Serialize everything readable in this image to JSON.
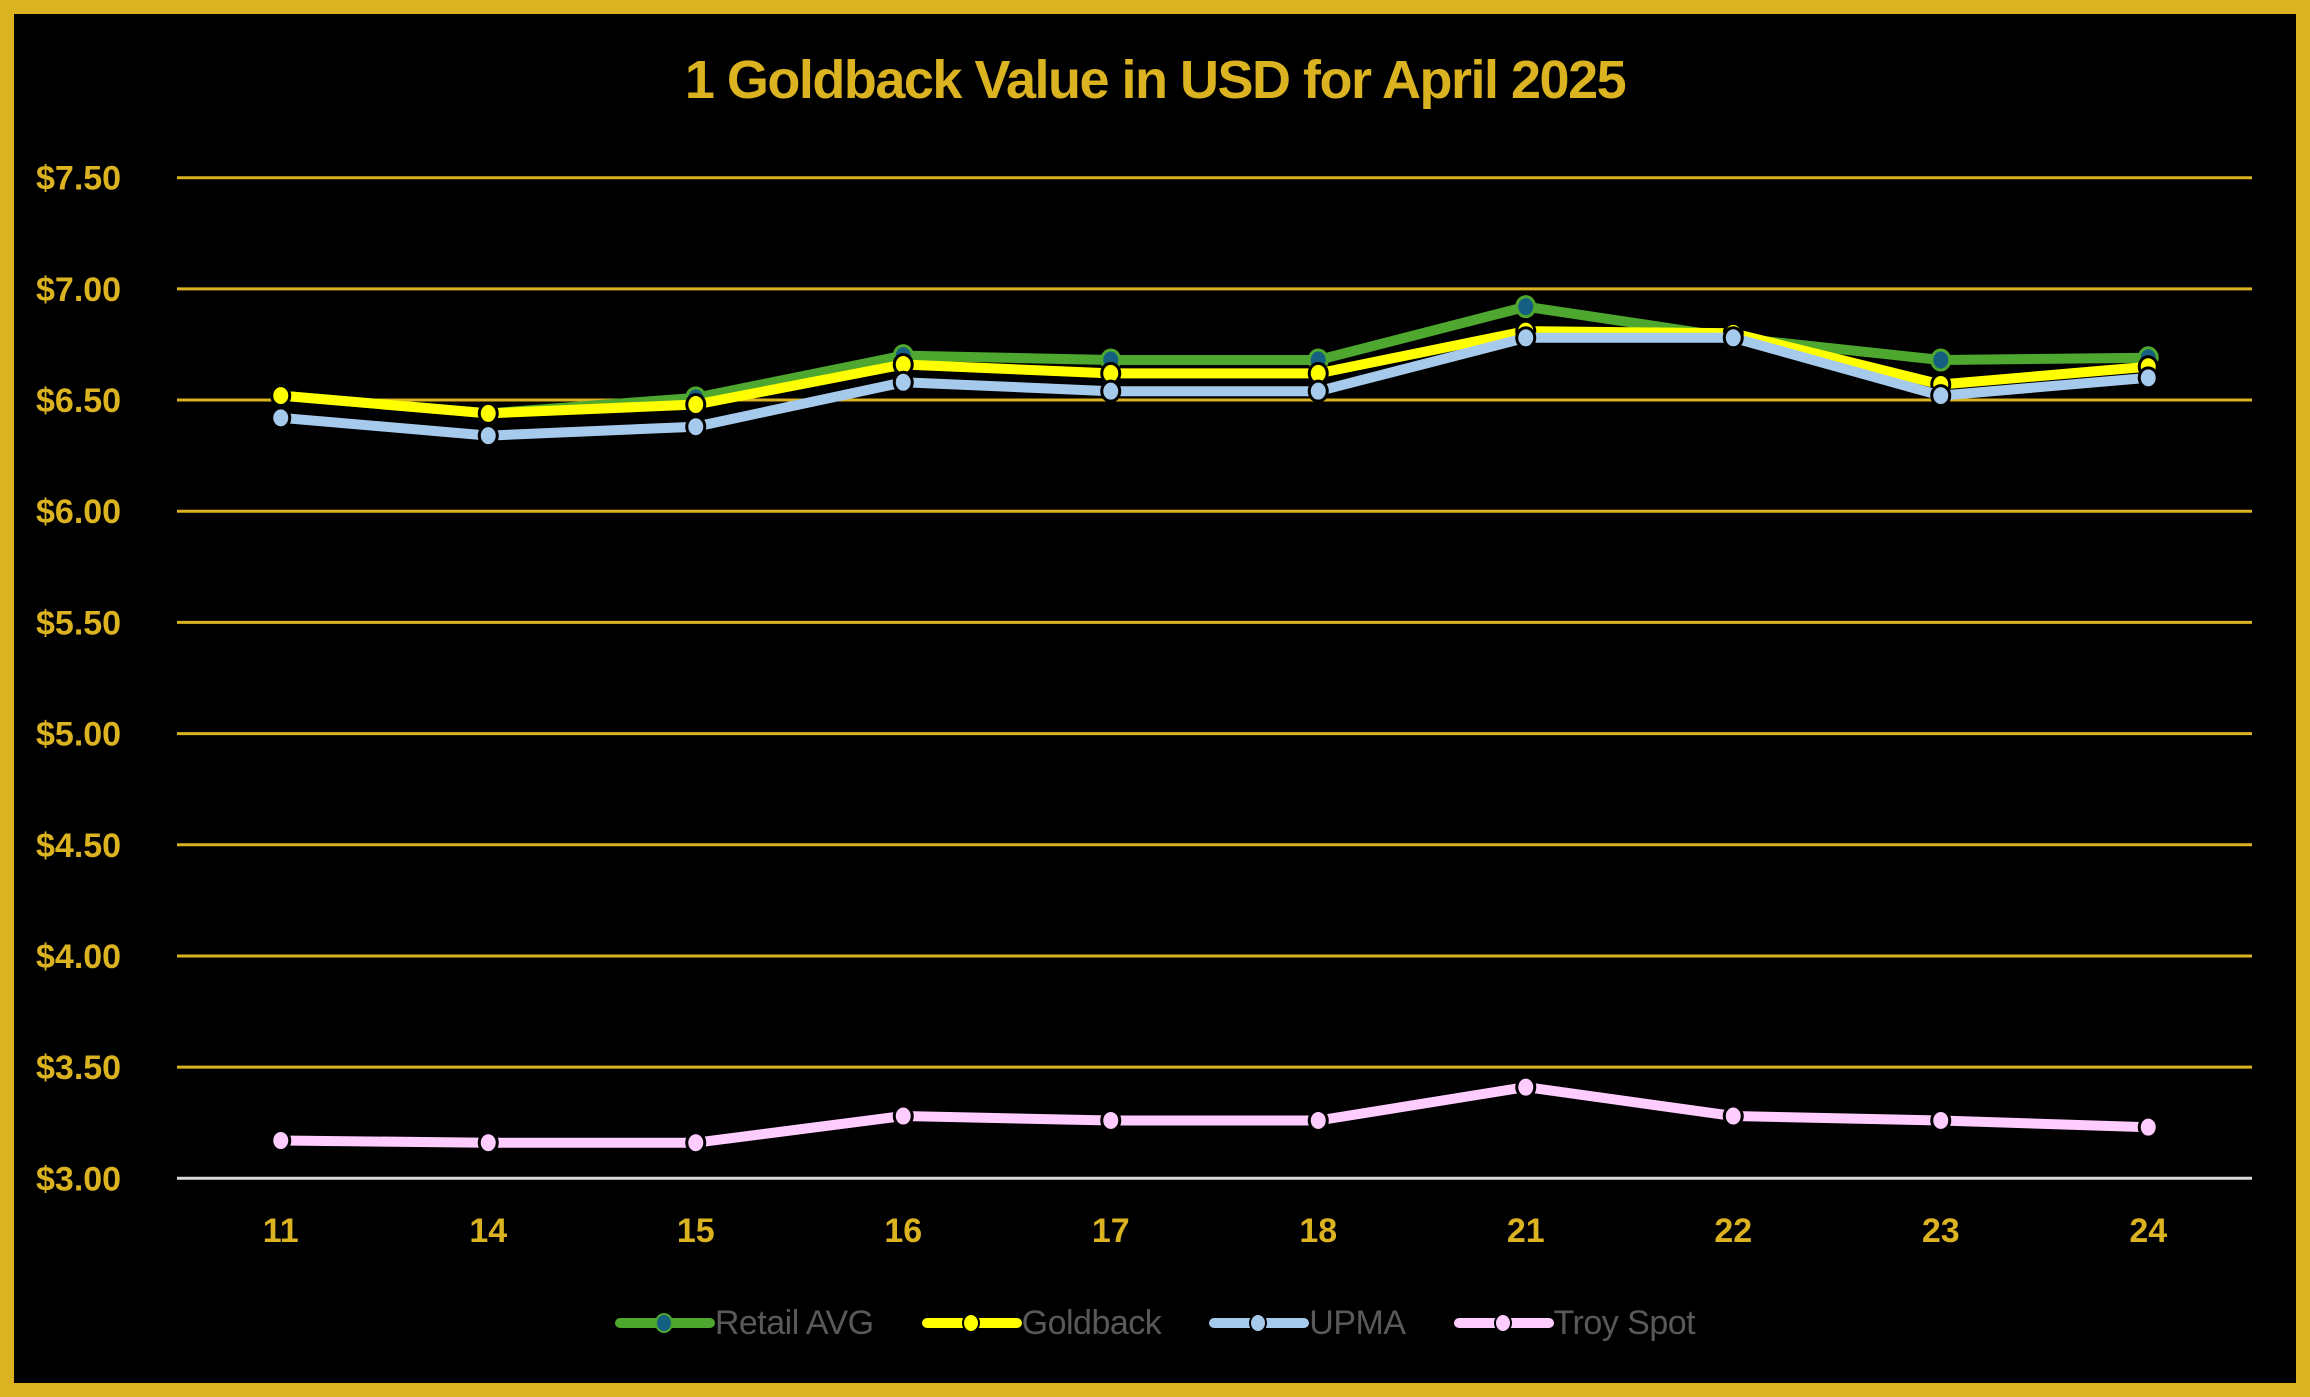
{
  "chart_data": {
    "type": "line",
    "title": "1 Goldback Value in USD for April 2025",
    "xlabel": "",
    "ylabel": "",
    "categories": [
      "11",
      "14",
      "15",
      "16",
      "17",
      "18",
      "21",
      "22",
      "23",
      "24"
    ],
    "ylim": [
      3.0,
      7.5
    ],
    "yticks": [
      3.0,
      3.5,
      4.0,
      4.5,
      5.0,
      5.5,
      6.0,
      6.5,
      7.0,
      7.5
    ],
    "ytick_labels": [
      "$3.00",
      "$3.50",
      "$4.00",
      "$4.50",
      "$5.00",
      "$5.50",
      "$6.00",
      "$6.50",
      "$7.00",
      "$7.50"
    ],
    "grid": true,
    "legend_position": "bottom",
    "series": [
      {
        "name": "Retail AVG",
        "color": "#4EA72E",
        "marker_fill": "#156082",
        "marker_edge": "#4EA72E",
        "values": [
          6.52,
          6.44,
          6.51,
          6.7,
          6.68,
          6.68,
          6.92,
          6.78,
          6.68,
          6.69
        ]
      },
      {
        "name": "Goldback",
        "color": "#FFFF00",
        "marker_fill": "#FFFF00",
        "marker_edge": "#000000",
        "values": [
          6.52,
          6.44,
          6.48,
          6.66,
          6.62,
          6.62,
          6.81,
          6.8,
          6.57,
          6.65
        ]
      },
      {
        "name": "UPMA",
        "color": "#A6CAEC",
        "marker_fill": "#A6CAEC",
        "marker_edge": "#000000",
        "values": [
          6.42,
          6.34,
          6.38,
          6.58,
          6.54,
          6.54,
          6.78,
          6.78,
          6.52,
          6.6
        ]
      },
      {
        "name": "Troy Spot",
        "color": "#FFCCFF",
        "marker_fill": "#FFCCFF",
        "marker_edge": "#000000",
        "values": [
          3.17,
          3.16,
          3.16,
          3.28,
          3.26,
          3.26,
          3.41,
          3.28,
          3.26,
          3.23
        ]
      }
    ]
  },
  "style": {
    "accent": "#DBB21F",
    "background": "#000000",
    "gridline": "#DBB21F",
    "baseline": "#D9D9D9",
    "legend_text": "#595959"
  }
}
